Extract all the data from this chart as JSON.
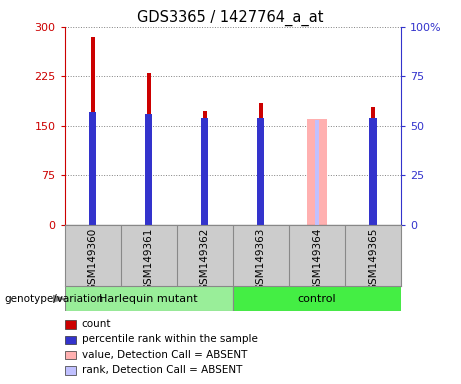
{
  "title": "GDS3365 / 1427764_a_at",
  "samples": [
    "GSM149360",
    "GSM149361",
    "GSM149362",
    "GSM149363",
    "GSM149364",
    "GSM149365"
  ],
  "count_values": [
    285,
    230,
    172,
    185,
    0,
    178
  ],
  "rank_values_pct": [
    57,
    56,
    54,
    54,
    0,
    54
  ],
  "absent_value": [
    0,
    0,
    0,
    0,
    160,
    0
  ],
  "absent_rank_pct": [
    0,
    0,
    0,
    0,
    53,
    0
  ],
  "count_color": "#cc0000",
  "rank_color": "#3333cc",
  "absent_value_color": "#ffb0b0",
  "absent_rank_color": "#c0c0ff",
  "ylim_left": [
    0,
    300
  ],
  "ylim_right": [
    0,
    100
  ],
  "yticks_left": [
    0,
    75,
    150,
    225,
    300
  ],
  "yticks_right": [
    0,
    25,
    50,
    75,
    100
  ],
  "ytick_labels_left": [
    "0",
    "75",
    "150",
    "225",
    "300"
  ],
  "ytick_labels_right": [
    "0",
    "25",
    "50",
    "75",
    "100%"
  ],
  "groups": [
    {
      "label": "Harlequin mutant",
      "indices": [
        0,
        1,
        2
      ],
      "color": "#99ee99"
    },
    {
      "label": "control",
      "indices": [
        3,
        4,
        5
      ],
      "color": "#44ee44"
    }
  ],
  "genotype_label": "genotype/variation",
  "legend_items": [
    {
      "label": "count",
      "color": "#cc0000"
    },
    {
      "label": "percentile rank within the sample",
      "color": "#3333cc"
    },
    {
      "label": "value, Detection Call = ABSENT",
      "color": "#ffb0b0"
    },
    {
      "label": "rank, Detection Call = ABSENT",
      "color": "#c0c0ff"
    }
  ],
  "thin_bar_width": 0.07,
  "wide_bar_width": 0.35,
  "background_color": "#ffffff",
  "xlabels_bg": "#cccccc",
  "spine_color": "#888888"
}
